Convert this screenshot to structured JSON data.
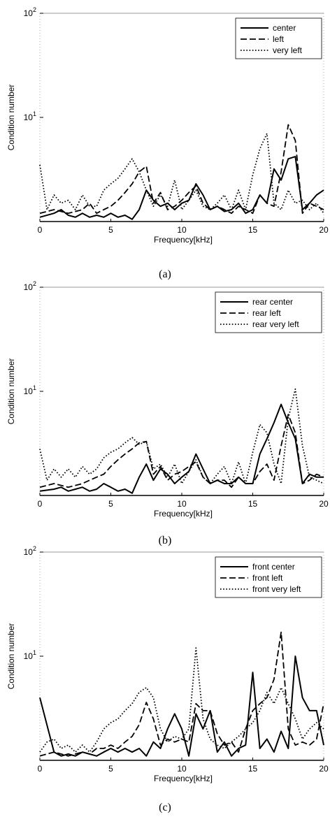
{
  "chart_data": [
    {
      "type": "line",
      "caption": "(a)",
      "xlabel": "Frequency[kHz]",
      "ylabel": "Condition number",
      "xlim": [
        0,
        20
      ],
      "ylim": [
        1,
        100
      ],
      "yscale": "log",
      "xticks": [
        0,
        5,
        10,
        15,
        20
      ],
      "yticks": [
        {
          "value": 10,
          "base": "10",
          "exp": "1"
        },
        {
          "value": 100,
          "base": "10",
          "exp": "2"
        }
      ],
      "legend_position": "top-right",
      "series": [
        {
          "name": "center",
          "style": "solid",
          "x": [
            0,
            1,
            1.5,
            2,
            2.5,
            3,
            3.5,
            4,
            4.5,
            5,
            5.5,
            6,
            6.5,
            7,
            7.5,
            8,
            8.5,
            9,
            9.5,
            10,
            10.5,
            11,
            11.5,
            12,
            12.5,
            13,
            13.5,
            14,
            14.5,
            15,
            15.5,
            16,
            16.5,
            17,
            17.5,
            18,
            18.5,
            19,
            19.5,
            20
          ],
          "y": [
            1.1,
            1.2,
            1.3,
            1.15,
            1.1,
            1.2,
            1.1,
            1.15,
            1.1,
            1.2,
            1.1,
            1.15,
            1.05,
            1.3,
            2.0,
            1.6,
            1.4,
            1.5,
            1.3,
            1.5,
            1.6,
            2.3,
            1.8,
            1.3,
            1.4,
            1.25,
            1.3,
            1.5,
            1.2,
            1.3,
            1.8,
            1.5,
            3.2,
            2.5,
            4.0,
            4.2,
            1.3,
            1.5,
            1.8,
            2.0
          ]
        },
        {
          "name": "left",
          "style": "dashed",
          "x": [
            0,
            1,
            2,
            3,
            3.5,
            4,
            4.5,
            5,
            5.5,
            6,
            6.5,
            7,
            7.5,
            8,
            8.5,
            9,
            9.5,
            10,
            10.5,
            11,
            11.5,
            12,
            12.5,
            13,
            13.5,
            14,
            14.5,
            15,
            15.5,
            16,
            16.5,
            17,
            17.5,
            18,
            18.5,
            19,
            19.5,
            20
          ],
          "y": [
            1.2,
            1.3,
            1.2,
            1.3,
            1.5,
            1.2,
            1.3,
            1.4,
            1.6,
            1.9,
            2.3,
            3.0,
            3.4,
            1.5,
            1.9,
            1.3,
            1.4,
            1.6,
            1.9,
            2.2,
            1.5,
            1.3,
            1.4,
            1.3,
            1.2,
            1.4,
            1.3,
            1.2,
            1.8,
            1.5,
            1.4,
            3.0,
            8.5,
            6.0,
            1.2,
            1.5,
            1.4,
            1.3
          ]
        },
        {
          "name": "very left",
          "style": "dotted",
          "x": [
            0,
            0.5,
            1,
            1.5,
            2,
            2.5,
            3,
            3.5,
            4,
            4.5,
            5,
            5.5,
            6,
            6.5,
            7,
            7.5,
            8,
            8.5,
            9,
            9.5,
            10,
            10.5,
            11,
            11.5,
            12,
            12.5,
            13,
            13.5,
            14,
            14.5,
            15,
            15.5,
            16,
            16.5,
            17,
            17.5,
            18,
            18.5,
            19,
            19.5,
            20
          ],
          "y": [
            3.5,
            1.3,
            1.8,
            1.5,
            1.6,
            1.3,
            1.8,
            1.4,
            1.4,
            2.0,
            2.3,
            2.6,
            3.2,
            4.0,
            3.0,
            2.0,
            1.4,
            1.8,
            1.4,
            2.5,
            1.3,
            1.6,
            2.0,
            1.4,
            1.3,
            1.5,
            1.8,
            1.3,
            2.0,
            1.3,
            2.8,
            5.0,
            7.0,
            1.5,
            1.3,
            2.0,
            1.5,
            1.6,
            1.3,
            1.5,
            1.2
          ]
        }
      ]
    },
    {
      "type": "line",
      "caption": "(b)",
      "xlabel": "Frequency[kHz]",
      "ylabel": "Condition number",
      "xlim": [
        0,
        20
      ],
      "ylim": [
        1,
        100
      ],
      "yscale": "log",
      "xticks": [
        0,
        5,
        10,
        15,
        20
      ],
      "yticks": [
        {
          "value": 10,
          "base": "10",
          "exp": "1"
        },
        {
          "value": 100,
          "base": "10",
          "exp": "2"
        }
      ],
      "legend_position": "top-right",
      "series": [
        {
          "name": "rear center",
          "style": "solid",
          "x": [
            0,
            1,
            1.5,
            2,
            2.5,
            3,
            3.5,
            4,
            4.5,
            5,
            5.5,
            6,
            6.5,
            7,
            7.5,
            8,
            8.5,
            9,
            9.5,
            10,
            10.5,
            11,
            11.5,
            12,
            12.5,
            13,
            13.5,
            14,
            14.5,
            15,
            15.5,
            16,
            16.5,
            17,
            17.5,
            18,
            18.5,
            19,
            19.5,
            20
          ],
          "y": [
            1.1,
            1.15,
            1.2,
            1.1,
            1.15,
            1.2,
            1.1,
            1.15,
            1.3,
            1.2,
            1.1,
            1.15,
            1.05,
            1.5,
            2.0,
            1.4,
            1.8,
            1.6,
            1.3,
            1.5,
            1.7,
            2.5,
            1.8,
            1.3,
            1.4,
            1.3,
            1.3,
            1.5,
            1.3,
            1.3,
            2.5,
            3.5,
            5.0,
            7.5,
            5.0,
            3.5,
            1.3,
            1.6,
            1.5,
            1.5
          ]
        },
        {
          "name": "rear left",
          "style": "dashed",
          "x": [
            0,
            1,
            2,
            3,
            3.5,
            4,
            4.5,
            5,
            5.5,
            6,
            6.5,
            7,
            7.5,
            8,
            8.5,
            9,
            9.5,
            10,
            10.5,
            11,
            11.5,
            12,
            12.5,
            13,
            13.5,
            14,
            14.5,
            15,
            15.5,
            16,
            16.5,
            17,
            17.5,
            18,
            18.5,
            19,
            19.5,
            20
          ],
          "y": [
            1.2,
            1.3,
            1.2,
            1.3,
            1.4,
            1.5,
            1.6,
            1.9,
            2.2,
            2.5,
            2.8,
            3.2,
            3.3,
            1.6,
            1.9,
            1.4,
            1.6,
            1.7,
            1.9,
            2.1,
            1.5,
            1.3,
            1.4,
            1.4,
            1.2,
            1.5,
            1.3,
            1.3,
            1.7,
            2.0,
            1.4,
            3.0,
            6.0,
            4.0,
            1.3,
            1.4,
            1.6,
            1.5
          ]
        },
        {
          "name": "rear very left",
          "style": "dotted",
          "x": [
            0,
            0.5,
            1,
            1.5,
            2,
            2.5,
            3,
            3.5,
            4,
            4.5,
            5,
            5.5,
            6,
            6.5,
            7,
            7.5,
            8,
            8.5,
            9,
            9.5,
            10,
            10.5,
            11,
            11.5,
            12,
            12.5,
            13,
            13.5,
            14,
            14.5,
            15,
            15.5,
            16,
            16.5,
            17,
            17.5,
            18,
            18.5,
            19,
            19.5,
            20
          ],
          "y": [
            2.8,
            1.4,
            1.8,
            1.5,
            1.8,
            1.5,
            1.9,
            1.6,
            1.8,
            2.3,
            2.6,
            2.8,
            3.2,
            3.6,
            3.1,
            3.3,
            1.8,
            2.0,
            1.5,
            2.0,
            1.3,
            1.7,
            2.2,
            1.5,
            1.3,
            1.6,
            1.9,
            1.3,
            2.1,
            1.3,
            2.6,
            4.8,
            4.0,
            2.0,
            1.3,
            5.5,
            10.5,
            3.0,
            1.5,
            1.4,
            1.3
          ]
        }
      ]
    },
    {
      "type": "line",
      "caption": "(c)",
      "xlabel": "Frequency[kHz]",
      "ylabel": "Condition number",
      "xlim": [
        0,
        20
      ],
      "ylim": [
        1,
        100
      ],
      "yscale": "log",
      "xticks": [
        0,
        5,
        10,
        15,
        20
      ],
      "yticks": [
        {
          "value": 10,
          "base": "10",
          "exp": "1"
        },
        {
          "value": 100,
          "base": "10",
          "exp": "2"
        }
      ],
      "legend_position": "top-right",
      "series": [
        {
          "name": "front center",
          "style": "solid",
          "x": [
            0,
            1,
            1.5,
            2,
            2.5,
            3,
            3.5,
            4,
            4.5,
            5,
            5.5,
            6,
            6.5,
            7,
            7.5,
            8,
            8.5,
            9,
            9.5,
            10,
            10.5,
            11,
            11.5,
            12,
            12.5,
            13,
            13.5,
            14,
            14.5,
            15,
            15.5,
            16,
            16.5,
            17,
            17.5,
            18,
            18.5,
            19,
            19.5,
            20
          ],
          "y": [
            4.0,
            1.2,
            1.1,
            1.15,
            1.1,
            1.2,
            1.15,
            1.1,
            1.2,
            1.3,
            1.2,
            1.3,
            1.2,
            1.3,
            1.1,
            1.5,
            1.3,
            2.0,
            2.8,
            2.0,
            1.1,
            2.8,
            2.0,
            3.0,
            1.2,
            1.5,
            1.1,
            1.3,
            1.4,
            7.0,
            1.3,
            1.6,
            1.2,
            1.9,
            1.3,
            10.0,
            4.0,
            3.0,
            3.0,
            1.4
          ]
        },
        {
          "name": "front left",
          "style": "dashed",
          "x": [
            0,
            1,
            2,
            3,
            3.5,
            4,
            4.5,
            5,
            5.5,
            6,
            6.5,
            7,
            7.5,
            8,
            8.5,
            9,
            9.5,
            10,
            10.5,
            11,
            11.5,
            12,
            12.5,
            13,
            13.5,
            14,
            14.5,
            15,
            15.5,
            16,
            16.5,
            17,
            17.5,
            18,
            18.5,
            19,
            19.5,
            20
          ],
          "y": [
            1.1,
            1.2,
            1.1,
            1.2,
            1.15,
            1.3,
            1.3,
            1.4,
            1.3,
            1.5,
            1.7,
            2.2,
            3.6,
            2.5,
            1.4,
            1.6,
            1.5,
            1.6,
            1.5,
            3.5,
            3.0,
            3.0,
            1.8,
            1.4,
            1.5,
            1.2,
            2.0,
            3.0,
            3.5,
            4.0,
            6.0,
            17.0,
            2.0,
            1.4,
            1.5,
            1.4,
            1.6,
            3.5
          ]
        },
        {
          "name": "front very left",
          "style": "dotted",
          "x": [
            0,
            0.5,
            1,
            1.5,
            2,
            2.5,
            3,
            3.5,
            4,
            4.5,
            5,
            5.5,
            6,
            6.5,
            7,
            7.5,
            8,
            8.5,
            9,
            9.5,
            10,
            10.5,
            11,
            11.5,
            12,
            12.5,
            13,
            13.5,
            14,
            14.5,
            15,
            15.5,
            16,
            16.5,
            17,
            17.5,
            18,
            18.5,
            19,
            19.5,
            20
          ],
          "y": [
            1.2,
            1.5,
            1.6,
            1.3,
            1.4,
            1.2,
            1.4,
            1.2,
            1.5,
            2.0,
            2.3,
            2.5,
            3.0,
            3.5,
            4.5,
            5.0,
            4.0,
            2.0,
            1.5,
            1.7,
            1.6,
            2.0,
            12.0,
            2.5,
            1.6,
            1.4,
            1.3,
            1.5,
            1.7,
            2.0,
            2.3,
            3.0,
            4.5,
            3.5,
            5.0,
            3.5,
            2.5,
            1.6,
            2.0,
            2.3,
            2.0
          ]
        }
      ]
    }
  ]
}
